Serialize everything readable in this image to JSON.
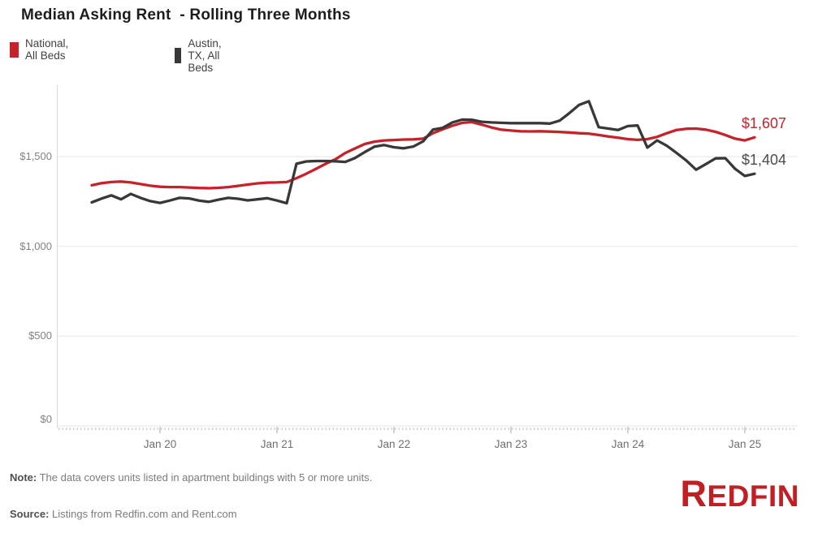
{
  "title": "Median Asking Rent  - Rolling Three Months",
  "legend": [
    {
      "label": "National, All Beds",
      "color": "#c5232b"
    },
    {
      "label": "Austin, TX, All Beds",
      "color": "#383838"
    }
  ],
  "end_labels": {
    "national": "$1,607",
    "austin": "$1,404"
  },
  "note": {
    "prefix": "Note:",
    "text": " The data covers units listed in apartment buildings with 5 or more units."
  },
  "source": {
    "prefix": "Source:",
    "text": " Listings from Redfin.com and Rent.com"
  },
  "logo_text": "REDFIN",
  "colors": {
    "national": "#c5232b",
    "austin": "#383838",
    "logo_red": "#c21f25",
    "gridline": "#e9e9e9",
    "axis": "#d9d9d9",
    "tick": "#b5b5b5"
  },
  "chart_data": {
    "type": "line",
    "title": "Median Asking Rent  - Rolling Three Months",
    "xlabel": "",
    "ylabel": "",
    "ylim": [
      0,
      1900
    ],
    "grid": "horizontal",
    "legend_position": "top-left",
    "ytick_values": [
      0,
      500,
      1000,
      1500
    ],
    "ytick_labels": [
      "$1,500",
      "$1,000",
      "$500",
      "$0"
    ],
    "xtick_labels": [
      "Jan 20",
      "Jan 21",
      "Jan 22",
      "Jan 23",
      "Jan 24",
      "Jan 25"
    ],
    "xtick_month_indices": [
      7,
      19,
      31,
      43,
      55,
      67
    ],
    "x": [
      "2019-06",
      "2019-07",
      "2019-08",
      "2019-09",
      "2019-10",
      "2019-11",
      "2019-12",
      "2020-01",
      "2020-02",
      "2020-03",
      "2020-04",
      "2020-05",
      "2020-06",
      "2020-07",
      "2020-08",
      "2020-09",
      "2020-10",
      "2020-11",
      "2020-12",
      "2021-01",
      "2021-02",
      "2021-03",
      "2021-04",
      "2021-05",
      "2021-06",
      "2021-07",
      "2021-08",
      "2021-09",
      "2021-10",
      "2021-11",
      "2021-12",
      "2022-01",
      "2022-02",
      "2022-03",
      "2022-04",
      "2022-05",
      "2022-06",
      "2022-07",
      "2022-08",
      "2022-09",
      "2022-10",
      "2022-11",
      "2022-12",
      "2023-01",
      "2023-02",
      "2023-03",
      "2023-04",
      "2023-05",
      "2023-06",
      "2023-07",
      "2023-08",
      "2023-09",
      "2023-10",
      "2023-11",
      "2023-12",
      "2024-01",
      "2024-02",
      "2024-03",
      "2024-04",
      "2024-05",
      "2024-06",
      "2024-07",
      "2024-08",
      "2024-09",
      "2024-10",
      "2024-11",
      "2024-12",
      "2025-01",
      "2025-02"
    ],
    "series": [
      {
        "name": "National, All Beds",
        "color": "#c5232b",
        "end_label": "$1,607",
        "values": [
          1340,
          1352,
          1358,
          1361,
          1356,
          1347,
          1338,
          1332,
          1330,
          1330,
          1328,
          1325,
          1324,
          1326,
          1330,
          1337,
          1344,
          1351,
          1355,
          1356,
          1358,
          1380,
          1404,
          1432,
          1460,
          1485,
          1520,
          1545,
          1570,
          1583,
          1590,
          1592,
          1595,
          1596,
          1600,
          1630,
          1652,
          1672,
          1688,
          1692,
          1678,
          1662,
          1650,
          1645,
          1641,
          1640,
          1641,
          1639,
          1637,
          1634,
          1630,
          1628,
          1620,
          1612,
          1605,
          1597,
          1593,
          1597,
          1610,
          1630,
          1648,
          1655,
          1656,
          1650,
          1638,
          1620,
          1600,
          1590,
          1607
        ]
      },
      {
        "name": "Austin, TX, All Beds",
        "color": "#383838",
        "end_label": "$1,404",
        "values": [
          1245,
          1266,
          1284,
          1262,
          1292,
          1270,
          1252,
          1242,
          1255,
          1270,
          1267,
          1255,
          1248,
          1260,
          1270,
          1265,
          1256,
          1262,
          1268,
          1255,
          1240,
          1460,
          1473,
          1475,
          1475,
          1474,
          1470,
          1492,
          1525,
          1555,
          1564,
          1552,
          1546,
          1556,
          1585,
          1650,
          1660,
          1690,
          1706,
          1705,
          1694,
          1690,
          1688,
          1686,
          1686,
          1686,
          1686,
          1684,
          1700,
          1742,
          1788,
          1808,
          1664,
          1656,
          1648,
          1670,
          1673,
          1550,
          1590,
          1560,
          1520,
          1478,
          1427,
          1458,
          1490,
          1491,
          1432,
          1392,
          1404
        ]
      }
    ]
  }
}
